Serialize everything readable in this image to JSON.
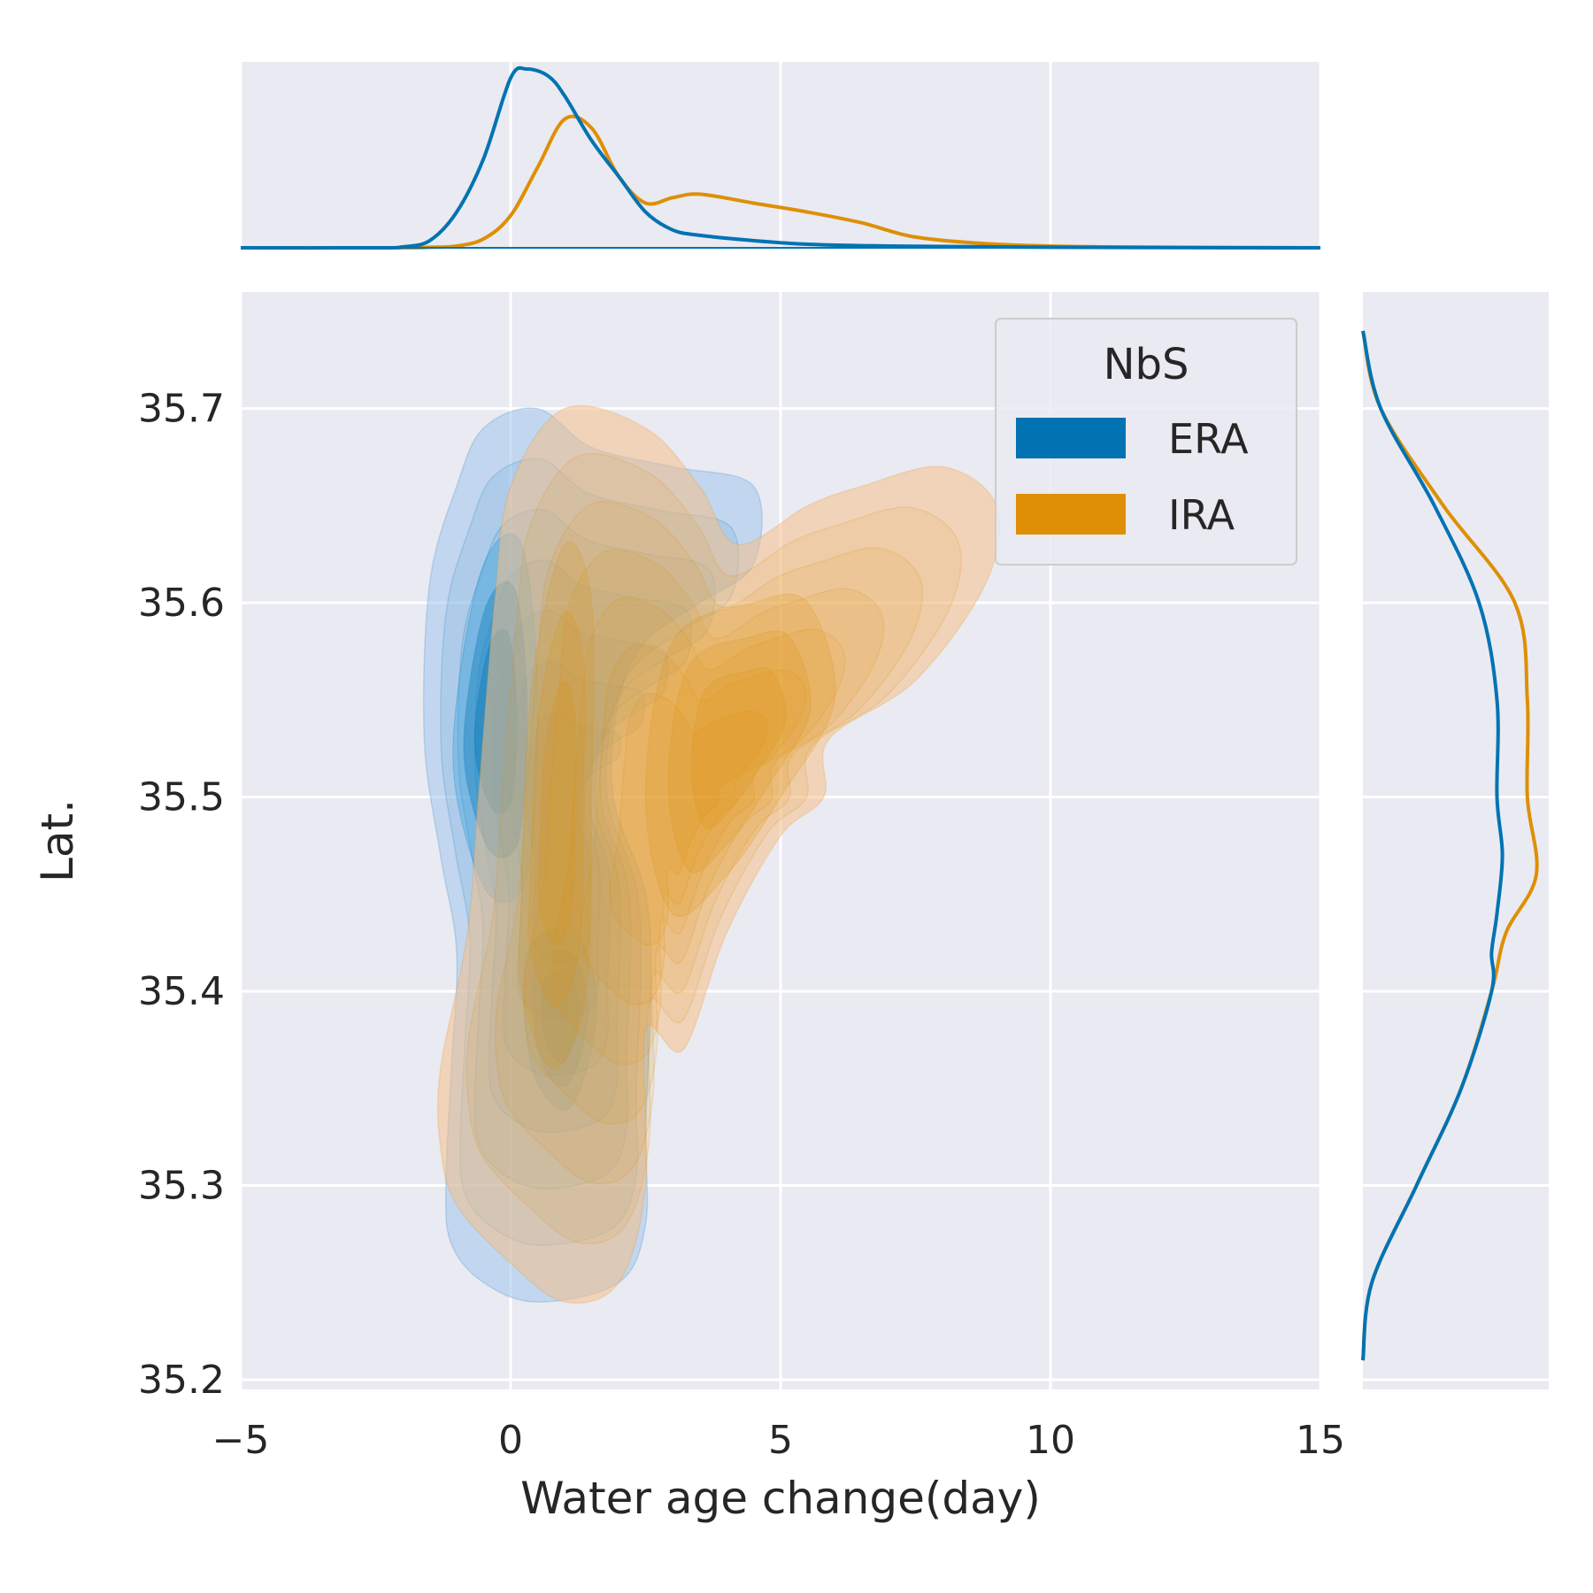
{
  "chart_data": {
    "type": "kde-jointplot",
    "xlabel": "Water age change(day)",
    "ylabel": "Lat.",
    "xlim": [
      -5,
      15
    ],
    "ylim": [
      35.195,
      35.76
    ],
    "xticks": [
      -5,
      0,
      5,
      10,
      15
    ],
    "xtick_labels": [
      "−5",
      "0",
      "5",
      "10",
      "15"
    ],
    "yticks": [
      35.2,
      35.3,
      35.4,
      35.5,
      35.6,
      35.7
    ],
    "ytick_labels": [
      "35.2",
      "35.3",
      "35.4",
      "35.5",
      "35.6",
      "35.7"
    ],
    "grid": true,
    "legend": {
      "title": "NbS",
      "placement": "upper-right",
      "items": [
        {
          "label": "ERA",
          "color": "#0173b2"
        },
        {
          "label": "IRA",
          "color": "#de8f05"
        }
      ]
    },
    "series": [
      {
        "name": "ERA",
        "color": "#0173b2",
        "fill_color": "#a1c4ee",
        "inner_color": "#35a0e0",
        "joint_outer_contour": [
          [
            -1.6,
            35.53
          ],
          [
            -1.5,
            35.61
          ],
          [
            -1.0,
            35.66
          ],
          [
            -0.5,
            35.69
          ],
          [
            0.5,
            35.7
          ],
          [
            1.5,
            35.68
          ],
          [
            3.0,
            35.67
          ],
          [
            4.5,
            35.66
          ],
          [
            4.5,
            35.62
          ],
          [
            3.5,
            35.6
          ],
          [
            2.5,
            35.58
          ],
          [
            2.0,
            35.55
          ],
          [
            1.9,
            35.5
          ],
          [
            2.5,
            35.45
          ],
          [
            2.6,
            35.4
          ],
          [
            2.5,
            35.33
          ],
          [
            2.5,
            35.28
          ],
          [
            2.0,
            35.25
          ],
          [
            0.5,
            35.24
          ],
          [
            -0.5,
            35.25
          ],
          [
            -1.1,
            35.27
          ],
          [
            -1.2,
            35.3
          ],
          [
            -1.1,
            35.36
          ],
          [
            -1.0,
            35.42
          ],
          [
            -1.3,
            35.47
          ],
          [
            -1.6,
            35.53
          ]
        ],
        "joint_peak_region": [
          [
            -1.0,
            35.55
          ],
          [
            -0.5,
            35.62
          ],
          [
            0.2,
            35.63
          ],
          [
            0.5,
            35.55
          ],
          [
            0.3,
            35.46
          ],
          [
            -0.4,
            35.45
          ],
          [
            -1.0,
            35.5
          ],
          [
            -1.0,
            35.55
          ]
        ],
        "joint_hotspot": [
          [
            0.3,
            35.42
          ],
          [
            1.2,
            35.43
          ],
          [
            1.6,
            35.39
          ],
          [
            1.1,
            35.34
          ],
          [
            0.4,
            35.36
          ],
          [
            0.3,
            35.42
          ]
        ],
        "marginal_x": [
          [
            -5,
            0.0
          ],
          [
            -2.5,
            0.0
          ],
          [
            -2.0,
            0.005
          ],
          [
            -1.5,
            0.04
          ],
          [
            -1.0,
            0.2
          ],
          [
            -0.5,
            0.5
          ],
          [
            0.0,
            0.95
          ],
          [
            0.3,
            1.0
          ],
          [
            0.7,
            0.96
          ],
          [
            1.0,
            0.85
          ],
          [
            1.5,
            0.6
          ],
          [
            2.0,
            0.4
          ],
          [
            2.5,
            0.2
          ],
          [
            3.0,
            0.1
          ],
          [
            3.5,
            0.07
          ],
          [
            4.5,
            0.04
          ],
          [
            5.5,
            0.02
          ],
          [
            7.0,
            0.01
          ],
          [
            10.0,
            0.003
          ],
          [
            15.0,
            0.0
          ]
        ],
        "marginal_y": [
          [
            35.21,
            0.0
          ],
          [
            35.25,
            0.05
          ],
          [
            35.3,
            0.3
          ],
          [
            35.35,
            0.55
          ],
          [
            35.4,
            0.72
          ],
          [
            35.42,
            0.72
          ],
          [
            35.44,
            0.75
          ],
          [
            35.47,
            0.78
          ],
          [
            35.5,
            0.75
          ],
          [
            35.55,
            0.75
          ],
          [
            35.6,
            0.65
          ],
          [
            35.65,
            0.4
          ],
          [
            35.7,
            0.1
          ],
          [
            35.74,
            0.0
          ]
        ]
      },
      {
        "name": "IRA",
        "color": "#de8f05",
        "fill_color": "#f4c08a",
        "inner_color": "#b58a3c",
        "joint_outer_contour": [
          [
            -1.3,
            35.32
          ],
          [
            -1.0,
            35.29
          ],
          [
            0.0,
            35.26
          ],
          [
            1.0,
            35.24
          ],
          [
            2.0,
            35.25
          ],
          [
            2.5,
            35.3
          ],
          [
            2.5,
            35.38
          ],
          [
            3.2,
            35.37
          ],
          [
            4.0,
            35.43
          ],
          [
            5.0,
            35.48
          ],
          [
            5.8,
            35.5
          ],
          [
            5.9,
            35.53
          ],
          [
            7.5,
            35.56
          ],
          [
            8.8,
            35.61
          ],
          [
            9.0,
            35.65
          ],
          [
            8.0,
            35.67
          ],
          [
            6.5,
            35.66
          ],
          [
            5.5,
            35.65
          ],
          [
            4.2,
            35.63
          ],
          [
            3.5,
            35.66
          ],
          [
            2.5,
            35.69
          ],
          [
            1.0,
            35.7
          ],
          [
            0.0,
            35.66
          ],
          [
            -0.3,
            35.6
          ],
          [
            -0.6,
            35.5
          ],
          [
            -0.8,
            35.43
          ],
          [
            -1.3,
            35.36
          ],
          [
            -1.3,
            35.32
          ]
        ],
        "joint_inner_lobe": [
          [
            2.5,
            35.5
          ],
          [
            3.0,
            35.58
          ],
          [
            4.5,
            35.6
          ],
          [
            5.5,
            35.6
          ],
          [
            6.0,
            35.55
          ],
          [
            5.0,
            35.5
          ],
          [
            4.0,
            35.46
          ],
          [
            3.0,
            35.44
          ],
          [
            2.5,
            35.5
          ]
        ],
        "joint_core": [
          [
            0.2,
            35.45
          ],
          [
            0.4,
            35.56
          ],
          [
            1.0,
            35.63
          ],
          [
            1.5,
            35.6
          ],
          [
            1.5,
            35.5
          ],
          [
            1.4,
            35.4
          ],
          [
            0.8,
            35.36
          ],
          [
            0.2,
            35.4
          ],
          [
            0.2,
            35.45
          ]
        ],
        "marginal_x": [
          [
            -5,
            0.0
          ],
          [
            -2.0,
            0.0
          ],
          [
            -1.5,
            0.003
          ],
          [
            -1.0,
            0.01
          ],
          [
            -0.5,
            0.05
          ],
          [
            0.0,
            0.18
          ],
          [
            0.5,
            0.45
          ],
          [
            1.0,
            0.72
          ],
          [
            1.5,
            0.67
          ],
          [
            2.0,
            0.4
          ],
          [
            2.5,
            0.25
          ],
          [
            3.0,
            0.28
          ],
          [
            3.5,
            0.3
          ],
          [
            4.5,
            0.25
          ],
          [
            5.5,
            0.2
          ],
          [
            6.5,
            0.14
          ],
          [
            7.5,
            0.06
          ],
          [
            9.0,
            0.02
          ],
          [
            11.0,
            0.005
          ],
          [
            15.0,
            0.0
          ]
        ],
        "marginal_y": [
          [
            35.21,
            0.0
          ],
          [
            35.25,
            0.05
          ],
          [
            35.3,
            0.3
          ],
          [
            35.35,
            0.55
          ],
          [
            35.4,
            0.72
          ],
          [
            35.43,
            0.8
          ],
          [
            35.46,
            0.97
          ],
          [
            35.5,
            0.92
          ],
          [
            35.55,
            0.92
          ],
          [
            35.6,
            0.85
          ],
          [
            35.65,
            0.45
          ],
          [
            35.7,
            0.1
          ],
          [
            35.74,
            0.0
          ]
        ]
      }
    ]
  }
}
